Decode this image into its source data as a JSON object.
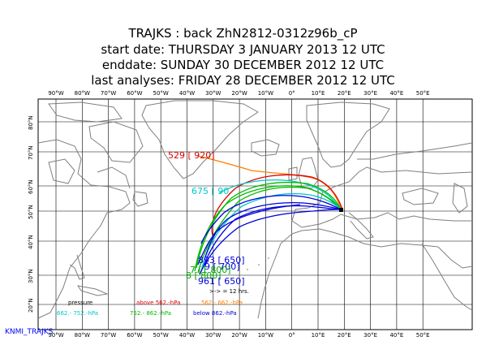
{
  "header": {
    "line1": "TRAJKS : back ZhN2812-0312z96b_cP",
    "line2": "start date:  THURSDAY   3 JANUARY   2013 12 UTC",
    "line3": "enddate:  SUNDAY    30 DECEMBER  2012 12 UTC",
    "line4": "last analyses:  FRIDAY    28 DECEMBER  2012 12 UTC"
  },
  "map": {
    "lon_labels": [
      "90°W",
      "80°W",
      "70°W",
      "60°W",
      "50°W",
      "40°W",
      "30°W",
      "20°W",
      "10°W",
      "0°",
      "10°E",
      "20°E",
      "30°E",
      "40°E",
      "50°E"
    ],
    "lat_labels": [
      "80°N",
      "70°N",
      "60°N",
      "50°N",
      "40°N",
      "30°N",
      "20°N"
    ],
    "point_labels": [
      {
        "text": "529 [ 920]",
        "color": "#dd0000"
      },
      {
        "text": "675 [ 90",
        "color": "#00c8c8"
      },
      {
        "text": "893 [ 650]",
        "color": "#0000dd"
      },
      {
        "text": "9 [ 700]",
        "color": "#0000dd"
      },
      {
        "text": "7 [1 800]",
        "color": "#00aa00"
      },
      {
        "text": "8 [ 800]",
        "color": "#00aa00"
      },
      {
        "text": "961 [ 650]",
        "color": "#0000dd"
      }
    ],
    "arrow_note": ">-> = 12 hrs.",
    "colors": {
      "coast": "#808080",
      "grid": "#000000",
      "red": "#dd0000",
      "orange": "#ff8000",
      "cyan": "#00c8c8",
      "green": "#00bb00",
      "blue": "#0000dd"
    }
  },
  "legend": {
    "row1": [
      {
        "text": "pressure",
        "color": "#000000"
      },
      {
        "text": "above  562.-hPa",
        "color": "#dd0000"
      },
      {
        "text": "562.-    662.-hPa",
        "color": "#ff8000"
      }
    ],
    "row2": [
      {
        "text": "662.-    752.-hPa",
        "color": "#00c8c8"
      },
      {
        "text": "752.-    862.-hPa",
        "color": "#00bb00"
      },
      {
        "text": "below  862.-hPa",
        "color": "#0000dd"
      }
    ]
  },
  "footer": {
    "text": "KNMI_TRAJKS"
  }
}
